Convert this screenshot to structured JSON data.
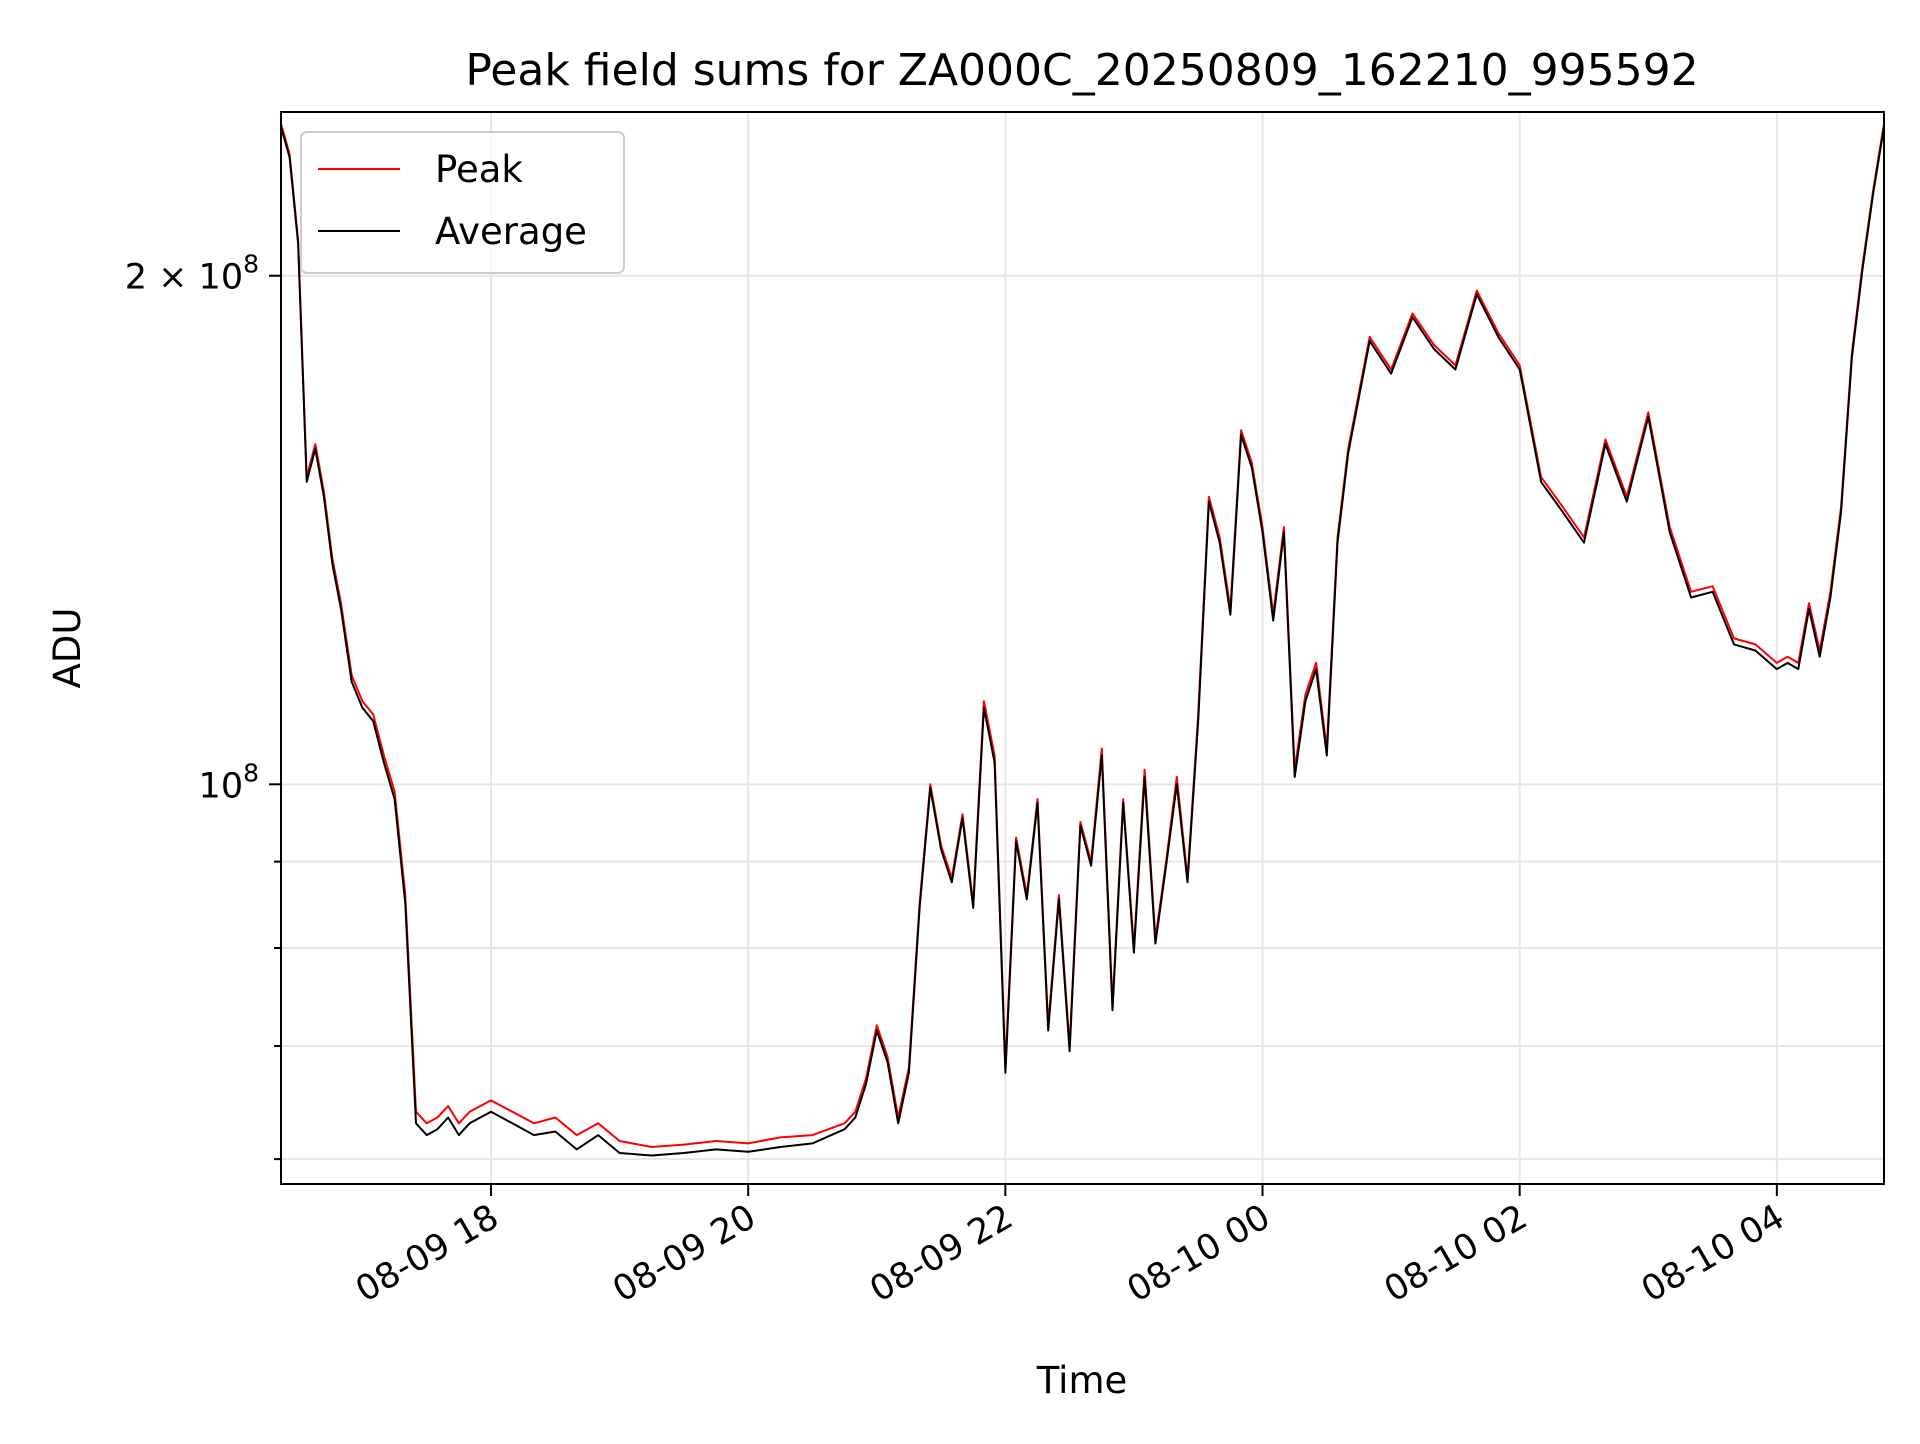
{
  "chart_data": {
    "type": "line",
    "title": "Peak field sums for ZA000C_20250809_162210_995592",
    "xlabel": "Time",
    "ylabel": "ADU",
    "yscale": "log",
    "ylim": [
      58000000,
      250000000
    ],
    "xlim": [
      "2025-08-09 16:22",
      "2025-08-10 04:50"
    ],
    "grid": true,
    "legend": {
      "location": "upper left",
      "entries": [
        "Peak",
        "Average"
      ]
    },
    "x_ticks": [
      {
        "value": "2025-08-09 18:00",
        "label": "08-09 18"
      },
      {
        "value": "2025-08-09 20:00",
        "label": "08-09 20"
      },
      {
        "value": "2025-08-09 22:00",
        "label": "08-09 22"
      },
      {
        "value": "2025-08-10 00:00",
        "label": "08-10 00"
      },
      {
        "value": "2025-08-10 02:00",
        "label": "08-10 02"
      },
      {
        "value": "2025-08-10 04:00",
        "label": "08-10 04"
      }
    ],
    "y_ticks": [
      {
        "value": 100000000,
        "label": "10^8",
        "base": "10",
        "exp": "8"
      },
      {
        "value": 200000000,
        "label": "2×10^8",
        "base": "2 × 10",
        "exp": "8"
      }
    ],
    "y_minor_ticks": [
      60000000,
      70000000,
      80000000,
      90000000
    ],
    "x": [
      "2025-08-09 16:22",
      "2025-08-09 16:26",
      "2025-08-09 16:30",
      "2025-08-09 16:34",
      "2025-08-09 16:38",
      "2025-08-09 16:42",
      "2025-08-09 16:46",
      "2025-08-09 16:50",
      "2025-08-09 16:55",
      "2025-08-09 17:00",
      "2025-08-09 17:05",
      "2025-08-09 17:10",
      "2025-08-09 17:15",
      "2025-08-09 17:20",
      "2025-08-09 17:25",
      "2025-08-09 17:30",
      "2025-08-09 17:35",
      "2025-08-09 17:40",
      "2025-08-09 17:45",
      "2025-08-09 17:50",
      "2025-08-09 18:00",
      "2025-08-09 18:10",
      "2025-08-09 18:20",
      "2025-08-09 18:30",
      "2025-08-09 18:40",
      "2025-08-09 18:50",
      "2025-08-09 19:00",
      "2025-08-09 19:15",
      "2025-08-09 19:30",
      "2025-08-09 19:45",
      "2025-08-09 20:00",
      "2025-08-09 20:15",
      "2025-08-09 20:30",
      "2025-08-09 20:45",
      "2025-08-09 20:50",
      "2025-08-09 20:55",
      "2025-08-09 21:00",
      "2025-08-09 21:05",
      "2025-08-09 21:10",
      "2025-08-09 21:15",
      "2025-08-09 21:20",
      "2025-08-09 21:25",
      "2025-08-09 21:30",
      "2025-08-09 21:35",
      "2025-08-09 21:40",
      "2025-08-09 21:45",
      "2025-08-09 21:50",
      "2025-08-09 21:55",
      "2025-08-09 22:00",
      "2025-08-09 22:05",
      "2025-08-09 22:10",
      "2025-08-09 22:15",
      "2025-08-09 22:20",
      "2025-08-09 22:25",
      "2025-08-09 22:30",
      "2025-08-09 22:35",
      "2025-08-09 22:40",
      "2025-08-09 22:45",
      "2025-08-09 22:50",
      "2025-08-09 22:55",
      "2025-08-09 23:00",
      "2025-08-09 23:05",
      "2025-08-09 23:10",
      "2025-08-09 23:15",
      "2025-08-09 23:20",
      "2025-08-09 23:25",
      "2025-08-09 23:30",
      "2025-08-09 23:35",
      "2025-08-09 23:40",
      "2025-08-09 23:45",
      "2025-08-09 23:50",
      "2025-08-09 23:55",
      "2025-08-10 00:00",
      "2025-08-10 00:05",
      "2025-08-10 00:10",
      "2025-08-10 00:15",
      "2025-08-10 00:20",
      "2025-08-10 00:25",
      "2025-08-10 00:30",
      "2025-08-10 00:35",
      "2025-08-10 00:40",
      "2025-08-10 00:50",
      "2025-08-10 01:00",
      "2025-08-10 01:10",
      "2025-08-10 01:20",
      "2025-08-10 01:30",
      "2025-08-10 01:40",
      "2025-08-10 01:50",
      "2025-08-10 02:00",
      "2025-08-10 02:10",
      "2025-08-10 02:20",
      "2025-08-10 02:30",
      "2025-08-10 02:40",
      "2025-08-10 02:50",
      "2025-08-10 03:00",
      "2025-08-10 03:10",
      "2025-08-10 03:20",
      "2025-08-10 03:30",
      "2025-08-10 03:40",
      "2025-08-10 03:50",
      "2025-08-10 04:00",
      "2025-08-10 04:05",
      "2025-08-10 04:10",
      "2025-08-10 04:15",
      "2025-08-10 04:20",
      "2025-08-10 04:25",
      "2025-08-10 04:30",
      "2025-08-10 04:35",
      "2025-08-10 04:40",
      "2025-08-10 04:45",
      "2025-08-10 04:50"
    ],
    "series": [
      {
        "name": "Peak",
        "color": "#ff0000",
        "values": [
          246000000,
          236000000,
          210000000,
          152000000,
          159000000,
          149000000,
          136000000,
          128000000,
          116000000,
          112000000,
          110000000,
          104000000,
          99000000,
          86000000,
          64000000,
          63000000,
          63500000,
          64500000,
          63000000,
          64000000,
          65000000,
          64000000,
          63000000,
          63500000,
          62000000,
          63000000,
          61500000,
          61000000,
          61200000,
          61500000,
          61300000,
          61800000,
          62000000,
          63000000,
          64000000,
          67000000,
          72000000,
          69000000,
          63500000,
          68000000,
          85000000,
          100000000,
          92000000,
          88000000,
          96000000,
          85000000,
          112000000,
          104000000,
          68000000,
          93000000,
          86000000,
          98000000,
          72000000,
          86000000,
          70000000,
          95000000,
          90000000,
          105000000,
          74000000,
          98000000,
          80000000,
          102000000,
          81000000,
          90000000,
          101000000,
          88000000,
          110000000,
          148000000,
          140000000,
          127000000,
          162000000,
          155000000,
          142000000,
          126000000,
          142000000,
          102000000,
          113000000,
          118000000,
          105000000,
          140000000,
          158000000,
          184000000,
          176000000,
          190000000,
          182000000,
          177000000,
          196000000,
          185000000,
          177000000,
          152000000,
          146000000,
          140000000,
          160000000,
          148000000,
          166000000,
          142000000,
          130000000,
          131000000,
          122000000,
          121000000,
          118000000,
          119000000,
          118000000,
          128000000,
          120000000,
          130000000,
          146000000,
          180000000,
          203000000,
          225000000,
          246000000
        ]
      },
      {
        "name": "Average",
        "color": "#000000",
        "values": [
          245000000,
          235000000,
          209000000,
          151000000,
          158000000,
          148000000,
          135000000,
          127000000,
          115000000,
          111000000,
          109000000,
          103000000,
          98000000,
          85000000,
          63000000,
          62000000,
          62500000,
          63500000,
          62000000,
          63000000,
          64000000,
          63000000,
          62000000,
          62300000,
          60800000,
          62000000,
          60500000,
          60300000,
          60500000,
          60800000,
          60600000,
          61000000,
          61300000,
          62500000,
          63500000,
          66500000,
          71500000,
          68500000,
          63000000,
          67500000,
          84500000,
          99500000,
          91500000,
          87500000,
          95500000,
          84500000,
          111000000,
          103000000,
          67500000,
          92500000,
          85500000,
          97500000,
          71500000,
          85500000,
          69500000,
          94500000,
          89500000,
          104000000,
          73500000,
          97500000,
          79500000,
          101000000,
          80500000,
          89500000,
          100000000,
          87500000,
          109000000,
          147000000,
          139000000,
          126000000,
          161000000,
          154000000,
          141000000,
          125000000,
          141000000,
          101000000,
          112000000,
          117000000,
          104000000,
          139000000,
          157000000,
          183000000,
          175000000,
          189000000,
          181000000,
          176000000,
          195000000,
          184000000,
          176000000,
          151000000,
          145000000,
          139000000,
          159000000,
          147000000,
          165000000,
          141000000,
          129000000,
          130000000,
          121000000,
          120000000,
          117000000,
          118000000,
          117000000,
          127000000,
          119000000,
          129000000,
          145000000,
          179000000,
          202000000,
          224000000,
          245000000
        ]
      }
    ]
  }
}
